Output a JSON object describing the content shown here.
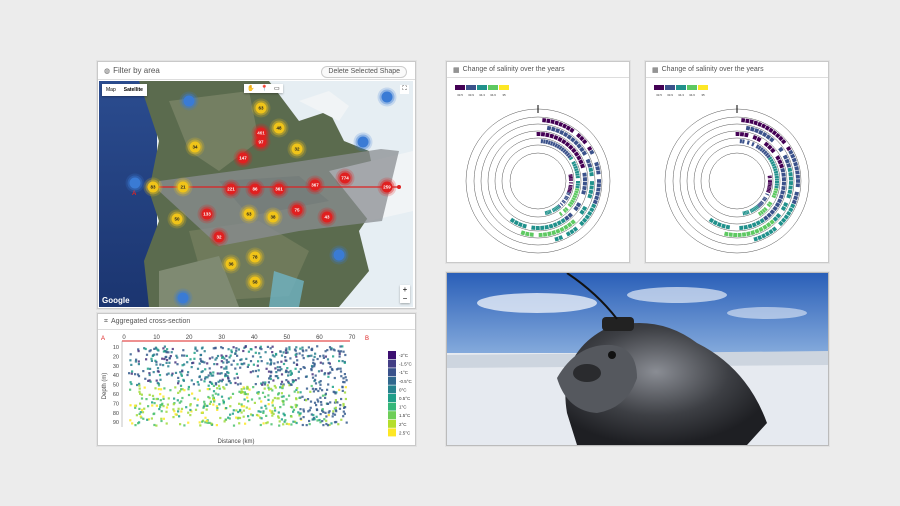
{
  "map_panel": {
    "title": "Filter by area",
    "delete_button": "Delete Selected Shape",
    "map_types": [
      "Map",
      "Satellite"
    ],
    "tools": [
      "✋",
      "📍",
      "▭"
    ],
    "zoom_in": "+",
    "zoom_out": "−",
    "fullscreen": "⛶",
    "google_logo": "Google",
    "point_a": "A",
    "markers": [
      {
        "label": "63",
        "color": "#f0c419",
        "x": "27%",
        "y": 12
      },
      {
        "label": "",
        "color": "#3a7bd5",
        "x": "15%",
        "y": 9
      },
      {
        "label": "",
        "color": "#3a7bd5",
        "x": "48%",
        "y": 7
      },
      {
        "label": "461",
        "color": "#e02020",
        "x": "27%",
        "y": 23
      },
      {
        "label": "48",
        "color": "#f0c419",
        "x": "30%",
        "y": 21
      },
      {
        "label": "34",
        "color": "#f0c419",
        "x": "16%",
        "y": 29
      },
      {
        "label": "147",
        "color": "#e02020",
        "x": "24%",
        "y": 34
      },
      {
        "label": "97",
        "color": "#e02020",
        "x": "27%",
        "y": 27
      },
      {
        "label": "32",
        "color": "#f0c419",
        "x": "33%",
        "y": 30
      },
      {
        "label": "",
        "color": "#3a7bd5",
        "x": "44%",
        "y": 27
      },
      {
        "label": "83",
        "color": "#f0c419",
        "x": "9%",
        "y": 47
      },
      {
        "label": "21",
        "color": "#f0c419",
        "x": "14%",
        "y": 47
      },
      {
        "label": "221",
        "color": "#e02020",
        "x": "22%",
        "y": 48
      },
      {
        "label": "86",
        "color": "#e02020",
        "x": "26%",
        "y": 48
      },
      {
        "label": "361",
        "color": "#e02020",
        "x": "30%",
        "y": 48
      },
      {
        "label": "367",
        "color": "#e02020",
        "x": "36%",
        "y": 46
      },
      {
        "label": "774",
        "color": "#e02020",
        "x": "41%",
        "y": 43
      },
      {
        "label": "259",
        "color": "#e02020",
        "x": "48%",
        "y": 47
      },
      {
        "label": "",
        "color": "#3a7bd5",
        "x": "6%",
        "y": 45
      },
      {
        "label": "50",
        "color": "#f0c419",
        "x": "13%",
        "y": 61
      },
      {
        "label": "133",
        "color": "#e02020",
        "x": "18%",
        "y": 59
      },
      {
        "label": "63",
        "color": "#f0c419",
        "x": "25%",
        "y": 59
      },
      {
        "label": "38",
        "color": "#f0c419",
        "x": "29%",
        "y": 60
      },
      {
        "label": "75",
        "color": "#e02020",
        "x": "33%",
        "y": 57
      },
      {
        "label": "43",
        "color": "#e02020",
        "x": "38%",
        "y": 60
      },
      {
        "label": "32",
        "color": "#e02020",
        "x": "20%",
        "y": 69
      },
      {
        "label": "78",
        "color": "#f0c419",
        "x": "26%",
        "y": 78
      },
      {
        "label": "36",
        "color": "#f0c419",
        "x": "22%",
        "y": 81
      },
      {
        "label": "58",
        "color": "#f0c419",
        "x": "26%",
        "y": 89
      },
      {
        "label": "",
        "color": "#3a7bd5",
        "x": "40%",
        "y": 77
      },
      {
        "label": "",
        "color": "#3a7bd5",
        "x": "14%",
        "y": 96
      }
    ]
  },
  "cross_panel": {
    "title": "Aggregated cross-section",
    "xlabel": "Distance (km)",
    "ylabel": "Depth (m)",
    "left_label": "A",
    "right_label": "B",
    "x_ticks": [
      "0",
      "10",
      "20",
      "30",
      "40",
      "50",
      "60",
      "70"
    ],
    "y_ticks": [
      "10",
      "20",
      "30",
      "40",
      "50",
      "60",
      "70",
      "80",
      "90"
    ],
    "legend": [
      {
        "label": "-2°C",
        "color": "#3b0f70"
      },
      {
        "label": "-1.5°C",
        "color": "#433e85"
      },
      {
        "label": "-1°C",
        "color": "#3a528b"
      },
      {
        "label": "-0.5°C",
        "color": "#31688e"
      },
      {
        "label": "0°C",
        "color": "#26828e"
      },
      {
        "label": "0.5°C",
        "color": "#1f9e89"
      },
      {
        "label": "1°C",
        "color": "#35b779"
      },
      {
        "label": "1.5°C",
        "color": "#6ece58"
      },
      {
        "label": "2°C",
        "color": "#b5de2b"
      },
      {
        "label": "2.5°C",
        "color": "#fde725"
      }
    ]
  },
  "salinity_panels": [
    {
      "title": "Change of salinity over the years",
      "legend": [
        "33.5",
        "33.9",
        "34.3",
        "34.6",
        "35"
      ]
    },
    {
      "title": "Change of salinity over the years",
      "legend": [
        "33.5",
        "33.9",
        "34.3",
        "34.6",
        "35"
      ]
    }
  ],
  "colors": {
    "viridis": [
      "#440154",
      "#3b528b",
      "#21918c",
      "#5ec962",
      "#fde725"
    ],
    "route": "#d22"
  }
}
